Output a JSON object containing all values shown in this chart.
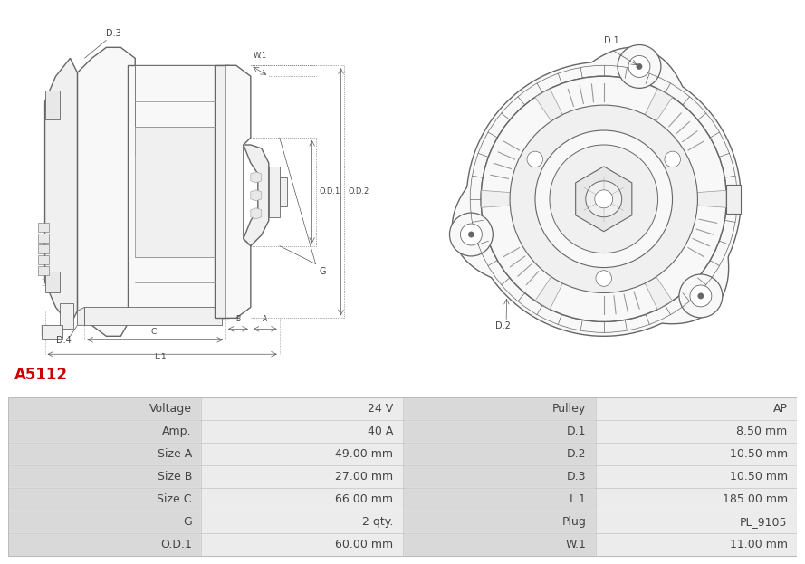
{
  "title": "A5112",
  "title_color": "#cc0000",
  "bg_color": "#ffffff",
  "table_rows": [
    [
      "Voltage",
      "24 V",
      "Pulley",
      "AP"
    ],
    [
      "Amp.",
      "40 A",
      "D.1",
      "8.50 mm"
    ],
    [
      "Size A",
      "49.00 mm",
      "D.2",
      "10.50 mm"
    ],
    [
      "Size B",
      "27.00 mm",
      "D.3",
      "10.50 mm"
    ],
    [
      "Size C",
      "66.00 mm",
      "L.1",
      "185.00 mm"
    ],
    [
      "G",
      "2 qty.",
      "Plug",
      "PL_9105"
    ],
    [
      "O.D.1",
      "60.00 mm",
      "W.1",
      "11.00 mm"
    ]
  ],
  "lc": "#666666",
  "lc2": "#999999",
  "lc_dim": "#555555",
  "face_light": "#f8f8f8",
  "face_mid": "#f0f0f0",
  "face_dark": "#e8e8e8",
  "col_bg_label": "#d9d9d9",
  "col_bg_value": "#ececec",
  "border_color": "#cccccc",
  "text_color": "#444444",
  "font_size": 9
}
